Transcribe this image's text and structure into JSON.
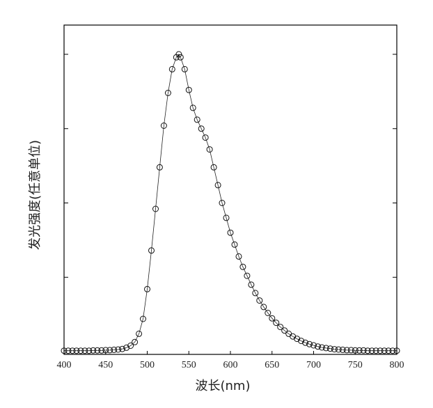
{
  "chart_data": {
    "type": "scatter",
    "xlabel": "波长(nm)",
    "ylabel": "发光强度(任意单位)",
    "xlim": [
      400,
      800
    ],
    "ylim": [
      0,
      1.0
    ],
    "xticks": [
      400,
      450,
      500,
      550,
      600,
      650,
      700,
      750,
      800
    ],
    "xtick_labels": [
      "400",
      "450",
      "500",
      "550",
      "600",
      "650",
      "700",
      "750",
      "800"
    ],
    "yticks_count": 5,
    "ytick_labels_shown": false,
    "grid": false,
    "marker": "open-circle",
    "series": [
      {
        "x": [
          400,
          405,
          410,
          415,
          420,
          425,
          430,
          435,
          440,
          445,
          450,
          455,
          460,
          465,
          470,
          475,
          480,
          485,
          490,
          495,
          500,
          505,
          510,
          515,
          520,
          525,
          530,
          535,
          538,
          540,
          545,
          550,
          555,
          560,
          565,
          570,
          575,
          580,
          585,
          590,
          595,
          600,
          605,
          610,
          615,
          620,
          625,
          630,
          635,
          640,
          645,
          650,
          655,
          660,
          665,
          670,
          675,
          680,
          685,
          690,
          695,
          700,
          705,
          710,
          715,
          720,
          725,
          730,
          735,
          740,
          745,
          750,
          755,
          760,
          765,
          770,
          775,
          780,
          785,
          790,
          795,
          800
        ],
        "y": [
          0.003,
          0.003,
          0.003,
          0.003,
          0.003,
          0.003,
          0.003,
          0.004,
          0.004,
          0.004,
          0.005,
          0.005,
          0.006,
          0.007,
          0.009,
          0.013,
          0.02,
          0.032,
          0.06,
          0.11,
          0.21,
          0.34,
          0.48,
          0.62,
          0.76,
          0.87,
          0.95,
          0.99,
          1.0,
          0.99,
          0.95,
          0.88,
          0.82,
          0.78,
          0.75,
          0.72,
          0.68,
          0.62,
          0.56,
          0.5,
          0.45,
          0.4,
          0.36,
          0.32,
          0.285,
          0.255,
          0.225,
          0.197,
          0.172,
          0.15,
          0.13,
          0.112,
          0.097,
          0.083,
          0.071,
          0.06,
          0.051,
          0.043,
          0.036,
          0.03,
          0.025,
          0.021,
          0.017,
          0.014,
          0.012,
          0.01,
          0.008,
          0.007,
          0.006,
          0.005,
          0.005,
          0.004,
          0.004,
          0.004,
          0.003,
          0.003,
          0.003,
          0.003,
          0.003,
          0.003,
          0.003,
          0.003
        ]
      }
    ]
  }
}
